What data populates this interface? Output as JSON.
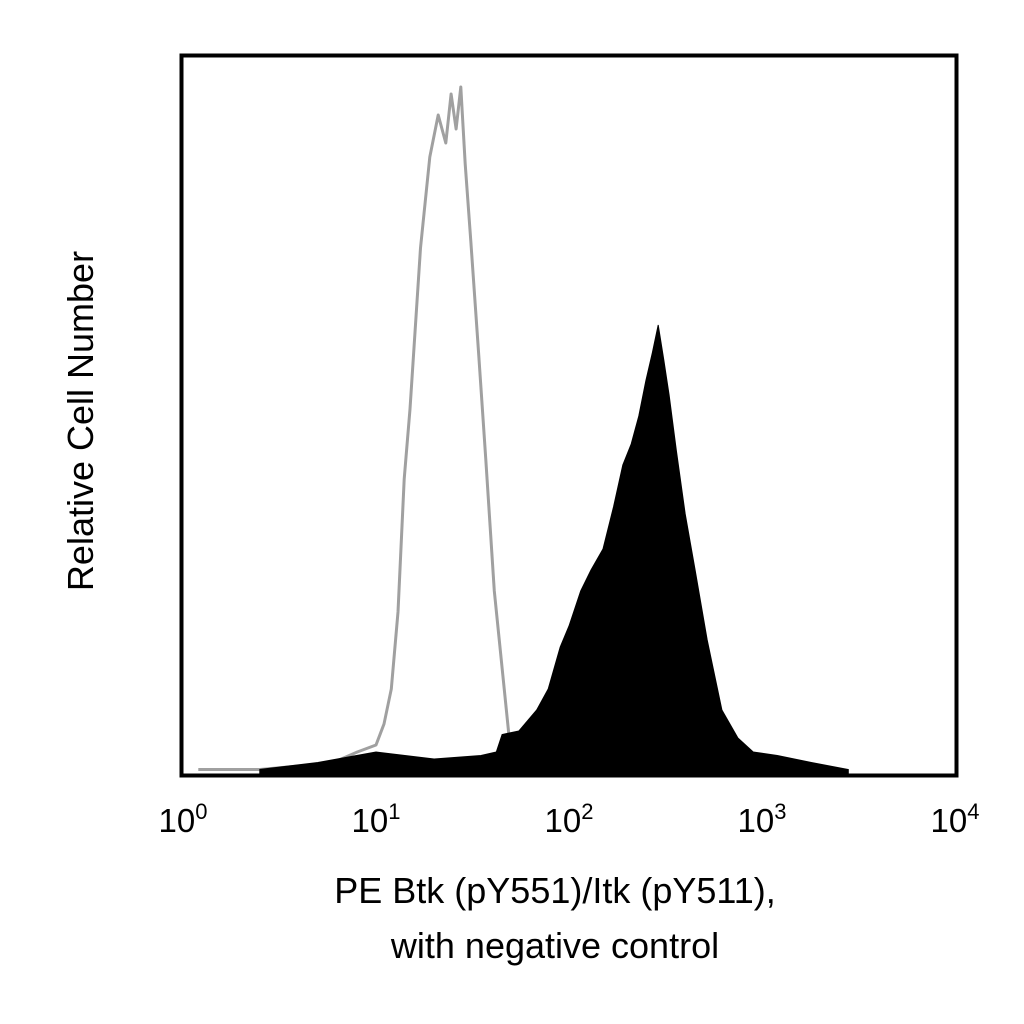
{
  "chart_data": {
    "type": "area",
    "subtype": "flow-cytometry-histogram",
    "x_scale": "log10",
    "xlim": [
      1,
      10000
    ],
    "ylim": [
      0,
      1
    ],
    "grid": false,
    "legend": "none",
    "xlabel_lines": [
      "PE Btk (pY551)/Itk (pY511),",
      "with negative control"
    ],
    "ylabel": "Relative Cell Number",
    "x_ticks": [
      {
        "base": "10",
        "exp": "0",
        "value": 1
      },
      {
        "base": "10",
        "exp": "1",
        "value": 10
      },
      {
        "base": "10",
        "exp": "2",
        "value": 100
      },
      {
        "base": "10",
        "exp": "3",
        "value": 1000
      },
      {
        "base": "10",
        "exp": "4",
        "value": 10000
      }
    ],
    "series": [
      {
        "style": "outline",
        "color": "#a0a0a0",
        "points": [
          [
            1.2,
            0.005
          ],
          [
            2.5,
            0.005
          ],
          [
            4,
            0.01
          ],
          [
            6,
            0.015
          ],
          [
            8,
            0.03
          ],
          [
            10,
            0.04
          ],
          [
            11,
            0.07
          ],
          [
            12,
            0.12
          ],
          [
            13,
            0.23
          ],
          [
            14,
            0.42
          ],
          [
            15,
            0.52
          ],
          [
            17,
            0.75
          ],
          [
            19,
            0.88
          ],
          [
            21,
            0.94
          ],
          [
            23,
            0.9
          ],
          [
            24.5,
            0.97
          ],
          [
            26,
            0.92
          ],
          [
            27.5,
            0.98
          ],
          [
            29,
            0.87
          ],
          [
            31,
            0.76
          ],
          [
            34,
            0.6
          ],
          [
            37,
            0.45
          ],
          [
            41,
            0.26
          ],
          [
            45,
            0.15
          ],
          [
            49,
            0.05
          ],
          [
            55,
            0.01
          ],
          [
            70,
            0.0
          ]
        ]
      },
      {
        "style": "filled",
        "color": "#000000",
        "points": [
          [
            2.5,
            0.005
          ],
          [
            5,
            0.015
          ],
          [
            10,
            0.03
          ],
          [
            20,
            0.02
          ],
          [
            35,
            0.025
          ],
          [
            42,
            0.03
          ],
          [
            45,
            0.055
          ],
          [
            55,
            0.06
          ],
          [
            68,
            0.09
          ],
          [
            78,
            0.12
          ],
          [
            90,
            0.18
          ],
          [
            100,
            0.21
          ],
          [
            115,
            0.26
          ],
          [
            130,
            0.29
          ],
          [
            150,
            0.32
          ],
          [
            170,
            0.38
          ],
          [
            190,
            0.44
          ],
          [
            210,
            0.47
          ],
          [
            230,
            0.51
          ],
          [
            250,
            0.56
          ],
          [
            270,
            0.6
          ],
          [
            290,
            0.64
          ],
          [
            310,
            0.59
          ],
          [
            330,
            0.54
          ],
          [
            360,
            0.46
          ],
          [
            400,
            0.37
          ],
          [
            450,
            0.29
          ],
          [
            520,
            0.19
          ],
          [
            620,
            0.09
          ],
          [
            750,
            0.05
          ],
          [
            900,
            0.03
          ],
          [
            1200,
            0.025
          ],
          [
            1800,
            0.015
          ],
          [
            2800,
            0.005
          ]
        ]
      }
    ]
  }
}
